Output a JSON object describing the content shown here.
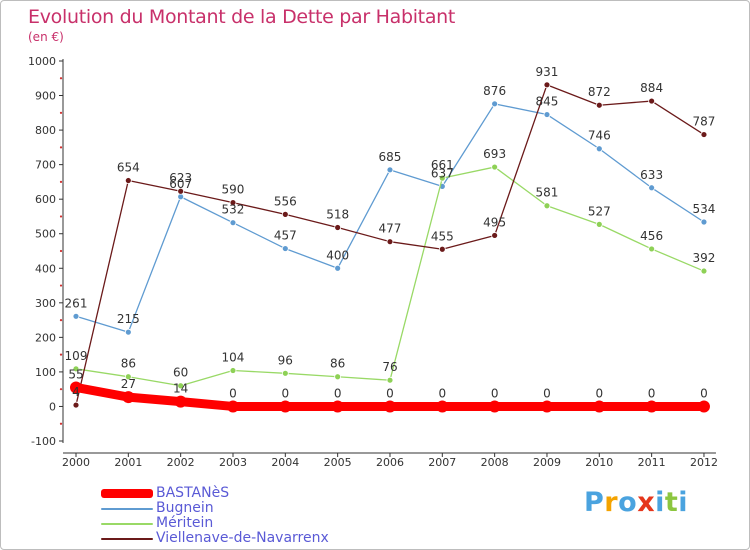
{
  "chart_data": {
    "type": "line",
    "title": "Evolution du Montant de la Dette par Habitant",
    "subtitle": "(en €)",
    "xlabel": "",
    "ylabel": "",
    "ylim": [
      -100,
      1000
    ],
    "yticks": [
      -100,
      0,
      100,
      200,
      300,
      400,
      500,
      600,
      700,
      800,
      900,
      1000
    ],
    "categories": [
      "2000",
      "2001",
      "2002",
      "2003",
      "2004",
      "2005",
      "2006",
      "2007",
      "2008",
      "2009",
      "2010",
      "2011",
      "2012"
    ],
    "grid": false,
    "legend_position": "bottom-left",
    "series": [
      {
        "name": "BASTANèS",
        "color": "#ff0000",
        "values": [
          55,
          27,
          14,
          0,
          0,
          0,
          0,
          0,
          0,
          0,
          0,
          0,
          0
        ]
      },
      {
        "name": "Bugnein",
        "color": "#5f9bd1",
        "values": [
          261,
          215,
          607,
          532,
          457,
          400,
          685,
          637,
          876,
          845,
          746,
          633,
          534
        ]
      },
      {
        "name": "Méritein",
        "color": "#99d966",
        "values": [
          109,
          86,
          60,
          104,
          96,
          86,
          76,
          661,
          693,
          581,
          527,
          456,
          392
        ]
      },
      {
        "name": "Viellenave-de-Navarrenx",
        "color": "#6b1a1a",
        "values": [
          4,
          654,
          623,
          590,
          556,
          518,
          477,
          455,
          495,
          931,
          872,
          884,
          787
        ]
      }
    ]
  },
  "logo": {
    "letters": [
      "P",
      "r",
      "o",
      "x",
      "i",
      "t",
      "i"
    ],
    "colors": [
      "#4aa3df",
      "#f4a300",
      "#4aa3df",
      "#e5361b",
      "#4aa3df",
      "#8cc63f",
      "#4aa3df"
    ]
  }
}
